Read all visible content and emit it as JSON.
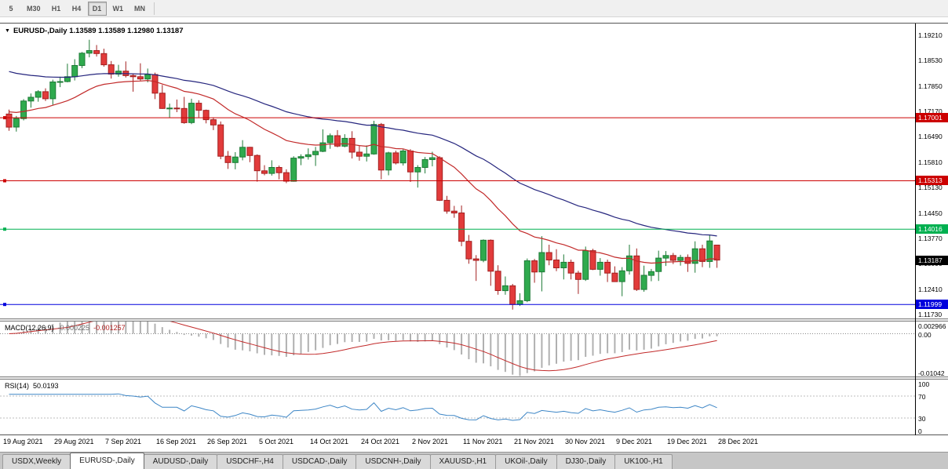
{
  "toolbar": {
    "items": [
      {
        "label": "5",
        "active": false
      },
      {
        "label": "M30",
        "active": false
      },
      {
        "label": "H1",
        "active": false
      },
      {
        "label": "H4",
        "active": false
      },
      {
        "label": "D1",
        "active": true
      },
      {
        "label": "W1",
        "active": false
      },
      {
        "label": "MN",
        "active": false
      }
    ]
  },
  "chart_title": {
    "dropdown_icon": "▼",
    "text": "EURUSD-,Daily 1.13589 1.13589 1.12980 1.13187"
  },
  "chart_data": {
    "type": "candlestick",
    "symbol": "EURUSD-,Daily",
    "ohlc_display": {
      "open": "1.13589",
      "high": "1.13589",
      "low": "1.12980",
      "close": "1.13187"
    },
    "y_axis_labels": [
      "1.19210",
      "1.18530",
      "1.17850",
      "1.17170",
      "1.16490",
      "1.15810",
      "1.15130",
      "1.14450",
      "1.13770",
      "1.13090",
      "1.12410",
      "1.11730"
    ],
    "x_labels": [
      "19 Aug 2021",
      "29 Aug 2021",
      "7 Sep 2021",
      "16 Sep 2021",
      "26 Sep 2021",
      "5 Oct 2021",
      "14 Oct 2021",
      "24 Oct 2021",
      "2 Nov 2021",
      "11 Nov 2021",
      "21 Nov 2021",
      "30 Nov 2021",
      "9 Dec 2021",
      "19 Dec 2021",
      "28 Dec 2021"
    ],
    "price_range": {
      "max": 1.19525,
      "min": 1.11625
    },
    "colors": {
      "bull": "#2faa4e",
      "bull_border": "#1d7a36",
      "bear": "#e23b3b",
      "bear_border": "#a32020",
      "ma_fast": "#c22a2a",
      "ma_slow": "#26267e"
    },
    "overlays": [
      {
        "name": "ma-fast-line",
        "period": 21,
        "seed": 1.172,
        "color": "#c22a2a"
      },
      {
        "name": "ma-slow-line",
        "period": 50,
        "seed": 1.183,
        "color": "#26267e"
      }
    ],
    "hlines": [
      {
        "price": 1.17001,
        "label": "1.17001",
        "color": "#cc0000"
      },
      {
        "price": 1.15313,
        "label": "1.15313",
        "color": "#cc0000"
      },
      {
        "price": 1.14016,
        "label": "1.14016",
        "color": "#00b050"
      },
      {
        "price": 1.11999,
        "label": "1.11999",
        "color": "#0000dd"
      }
    ],
    "current_price": {
      "value": 1.13187,
      "label": "1.13187",
      "bg": "#000000"
    },
    "candles": [
      [
        1.171,
        1.1722,
        1.1665,
        1.1675
      ],
      [
        1.1675,
        1.1705,
        1.1663,
        1.1698
      ],
      [
        1.1698,
        1.175,
        1.1693,
        1.1745
      ],
      [
        1.1745,
        1.1765,
        1.1727,
        1.1755
      ],
      [
        1.1755,
        1.1774,
        1.1743,
        1.177
      ],
      [
        1.177,
        1.1779,
        1.1745,
        1.1751
      ],
      [
        1.1751,
        1.1802,
        1.1735,
        1.1796
      ],
      [
        1.1796,
        1.181,
        1.1782,
        1.1797
      ],
      [
        1.1797,
        1.1845,
        1.1795,
        1.181
      ],
      [
        1.181,
        1.1857,
        1.18,
        1.184
      ],
      [
        1.184,
        1.1876,
        1.1833,
        1.1873
      ],
      [
        1.1873,
        1.1909,
        1.1862,
        1.188
      ],
      [
        1.188,
        1.1895,
        1.1864,
        1.1872
      ],
      [
        1.1872,
        1.1885,
        1.1837,
        1.1842
      ],
      [
        1.1842,
        1.1852,
        1.1805,
        1.1817
      ],
      [
        1.1817,
        1.1842,
        1.181,
        1.1825
      ],
      [
        1.1825,
        1.1851,
        1.1808,
        1.1813
      ],
      [
        1.1813,
        1.1818,
        1.177,
        1.181
      ],
      [
        1.181,
        1.1846,
        1.1799,
        1.1804
      ],
      [
        1.1804,
        1.1832,
        1.1795,
        1.1816
      ],
      [
        1.1816,
        1.1821,
        1.175,
        1.1766
      ],
      [
        1.1766,
        1.1788,
        1.1724,
        1.1725
      ],
      [
        1.1725,
        1.1738,
        1.17,
        1.1726
      ],
      [
        1.1726,
        1.1749,
        1.1715,
        1.1725
      ],
      [
        1.1725,
        1.1756,
        1.1684,
        1.1687
      ],
      [
        1.1687,
        1.1751,
        1.1683,
        1.1739
      ],
      [
        1.1739,
        1.1747,
        1.1701,
        1.172
      ],
      [
        1.172,
        1.1722,
        1.1685,
        1.1695
      ],
      [
        1.1695,
        1.1701,
        1.1667,
        1.1681
      ],
      [
        1.1681,
        1.169,
        1.1589,
        1.1597
      ],
      [
        1.1597,
        1.1611,
        1.1563,
        1.158
      ],
      [
        1.158,
        1.1608,
        1.1562,
        1.1595
      ],
      [
        1.1595,
        1.164,
        1.1586,
        1.1621
      ],
      [
        1.1621,
        1.1622,
        1.1581,
        1.1599
      ],
      [
        1.1599,
        1.1602,
        1.1529,
        1.1558
      ],
      [
        1.1558,
        1.1573,
        1.1546,
        1.1551
      ],
      [
        1.1551,
        1.1586,
        1.1545,
        1.1567
      ],
      [
        1.1567,
        1.1572,
        1.1535,
        1.1553
      ],
      [
        1.1553,
        1.1562,
        1.1525,
        1.153
      ],
      [
        1.153,
        1.1597,
        1.1529,
        1.1592
      ],
      [
        1.1592,
        1.1602,
        1.1573,
        1.1596
      ],
      [
        1.1596,
        1.1618,
        1.1588,
        1.1601
      ],
      [
        1.1601,
        1.1622,
        1.1571,
        1.161
      ],
      [
        1.161,
        1.1669,
        1.1608,
        1.1633
      ],
      [
        1.1633,
        1.1658,
        1.1617,
        1.1652
      ],
      [
        1.1652,
        1.1667,
        1.1621,
        1.1624
      ],
      [
        1.1624,
        1.1656,
        1.1621,
        1.1645
      ],
      [
        1.1645,
        1.1664,
        1.1591,
        1.1608
      ],
      [
        1.1608,
        1.1626,
        1.1585,
        1.1597
      ],
      [
        1.1597,
        1.1626,
        1.1583,
        1.1603
      ],
      [
        1.1603,
        1.1692,
        1.1601,
        1.1682
      ],
      [
        1.1682,
        1.1686,
        1.1535,
        1.156
      ],
      [
        1.156,
        1.1609,
        1.1546,
        1.1606
      ],
      [
        1.1606,
        1.1612,
        1.1575,
        1.1579
      ],
      [
        1.1579,
        1.1616,
        1.1572,
        1.1611
      ],
      [
        1.1611,
        1.1616,
        1.1528,
        1.1555
      ],
      [
        1.1555,
        1.1573,
        1.1513,
        1.1567
      ],
      [
        1.1567,
        1.1595,
        1.1551,
        1.1588
      ],
      [
        1.1588,
        1.1609,
        1.157,
        1.1593
      ],
      [
        1.1593,
        1.1597,
        1.1477,
        1.1479
      ],
      [
        1.1479,
        1.1491,
        1.1443,
        1.145
      ],
      [
        1.145,
        1.1464,
        1.1432,
        1.1445
      ],
      [
        1.1445,
        1.1465,
        1.1356,
        1.1369
      ],
      [
        1.1369,
        1.1386,
        1.1309,
        1.1322
      ],
      [
        1.1322,
        1.1332,
        1.1263,
        1.1318
      ],
      [
        1.1318,
        1.1374,
        1.1313,
        1.1372
      ],
      [
        1.1372,
        1.1374,
        1.125,
        1.1289
      ],
      [
        1.1289,
        1.1305,
        1.1226,
        1.1237
      ],
      [
        1.1237,
        1.1275,
        1.1226,
        1.125
      ],
      [
        1.125,
        1.1255,
        1.1186,
        1.12
      ],
      [
        1.12,
        1.123,
        1.1196,
        1.121
      ],
      [
        1.121,
        1.1323,
        1.1206,
        1.1317
      ],
      [
        1.1317,
        1.1322,
        1.1258,
        1.1287
      ],
      [
        1.1287,
        1.1383,
        1.1235,
        1.1339
      ],
      [
        1.1339,
        1.136,
        1.1305,
        1.1319
      ],
      [
        1.1319,
        1.1348,
        1.1289,
        1.1298
      ],
      [
        1.1298,
        1.1334,
        1.1267,
        1.1313
      ],
      [
        1.1313,
        1.132,
        1.1267,
        1.1284
      ],
      [
        1.1284,
        1.129,
        1.1228,
        1.1267
      ],
      [
        1.1267,
        1.1355,
        1.1263,
        1.1344
      ],
      [
        1.1344,
        1.1349,
        1.1292,
        1.1294
      ],
      [
        1.1294,
        1.1324,
        1.1277,
        1.1313
      ],
      [
        1.1313,
        1.132,
        1.126,
        1.1284
      ],
      [
        1.1284,
        1.1302,
        1.1261,
        1.1261
      ],
      [
        1.1261,
        1.13,
        1.1222,
        1.129
      ],
      [
        1.129,
        1.136,
        1.128,
        1.133
      ],
      [
        1.133,
        1.135,
        1.1236,
        1.124
      ],
      [
        1.124,
        1.1304,
        1.1234,
        1.1278
      ],
      [
        1.1278,
        1.1295,
        1.1262,
        1.1288
      ],
      [
        1.1288,
        1.1344,
        1.1263,
        1.1324
      ],
      [
        1.1324,
        1.1343,
        1.1303,
        1.1331
      ],
      [
        1.1331,
        1.1338,
        1.1308,
        1.1318
      ],
      [
        1.1318,
        1.1333,
        1.1304,
        1.1326
      ],
      [
        1.1326,
        1.1334,
        1.1287,
        1.131
      ],
      [
        1.131,
        1.1369,
        1.1285,
        1.1349
      ],
      [
        1.1349,
        1.136,
        1.13,
        1.1315
      ],
      [
        1.1315,
        1.1386,
        1.1298,
        1.137
      ],
      [
        1.13589,
        1.13589,
        1.1298,
        1.13187
      ]
    ],
    "indicators": {
      "macd": {
        "name": "MACD(12,26,9)",
        "value1": "-0.000225",
        "value2": "-0.001257",
        "fast": 12,
        "slow": 26,
        "signal": 9,
        "axis_labels": [
          "0.002966",
          "0.00",
          "-0.01042"
        ],
        "range": {
          "max": 0.002966,
          "min": -0.01042
        },
        "histogram_color": "#b0b0b0",
        "signal_color": "#c22a2a"
      },
      "rsi": {
        "name": "RSI(14)",
        "value": "50.0193",
        "period": 14,
        "axis_labels": [
          "100",
          "70",
          "30",
          "0"
        ],
        "levels": [
          70,
          30
        ],
        "line_color": "#3d86c6"
      }
    }
  },
  "tabs": [
    {
      "label": "USDX,Weekly",
      "active": false
    },
    {
      "label": "EURUSD-,Daily",
      "active": true
    },
    {
      "label": "AUDUSD-,Daily",
      "active": false
    },
    {
      "label": "USDCHF-,H4",
      "active": false
    },
    {
      "label": "USDCAD-,Daily",
      "active": false
    },
    {
      "label": "USDCNH-,Daily",
      "active": false
    },
    {
      "label": "XAUUSD-,H1",
      "active": false
    },
    {
      "label": "UKOil-,Daily",
      "active": false
    },
    {
      "label": "DJ30-,Daily",
      "active": false
    },
    {
      "label": "UK100-,H1",
      "active": false
    }
  ]
}
